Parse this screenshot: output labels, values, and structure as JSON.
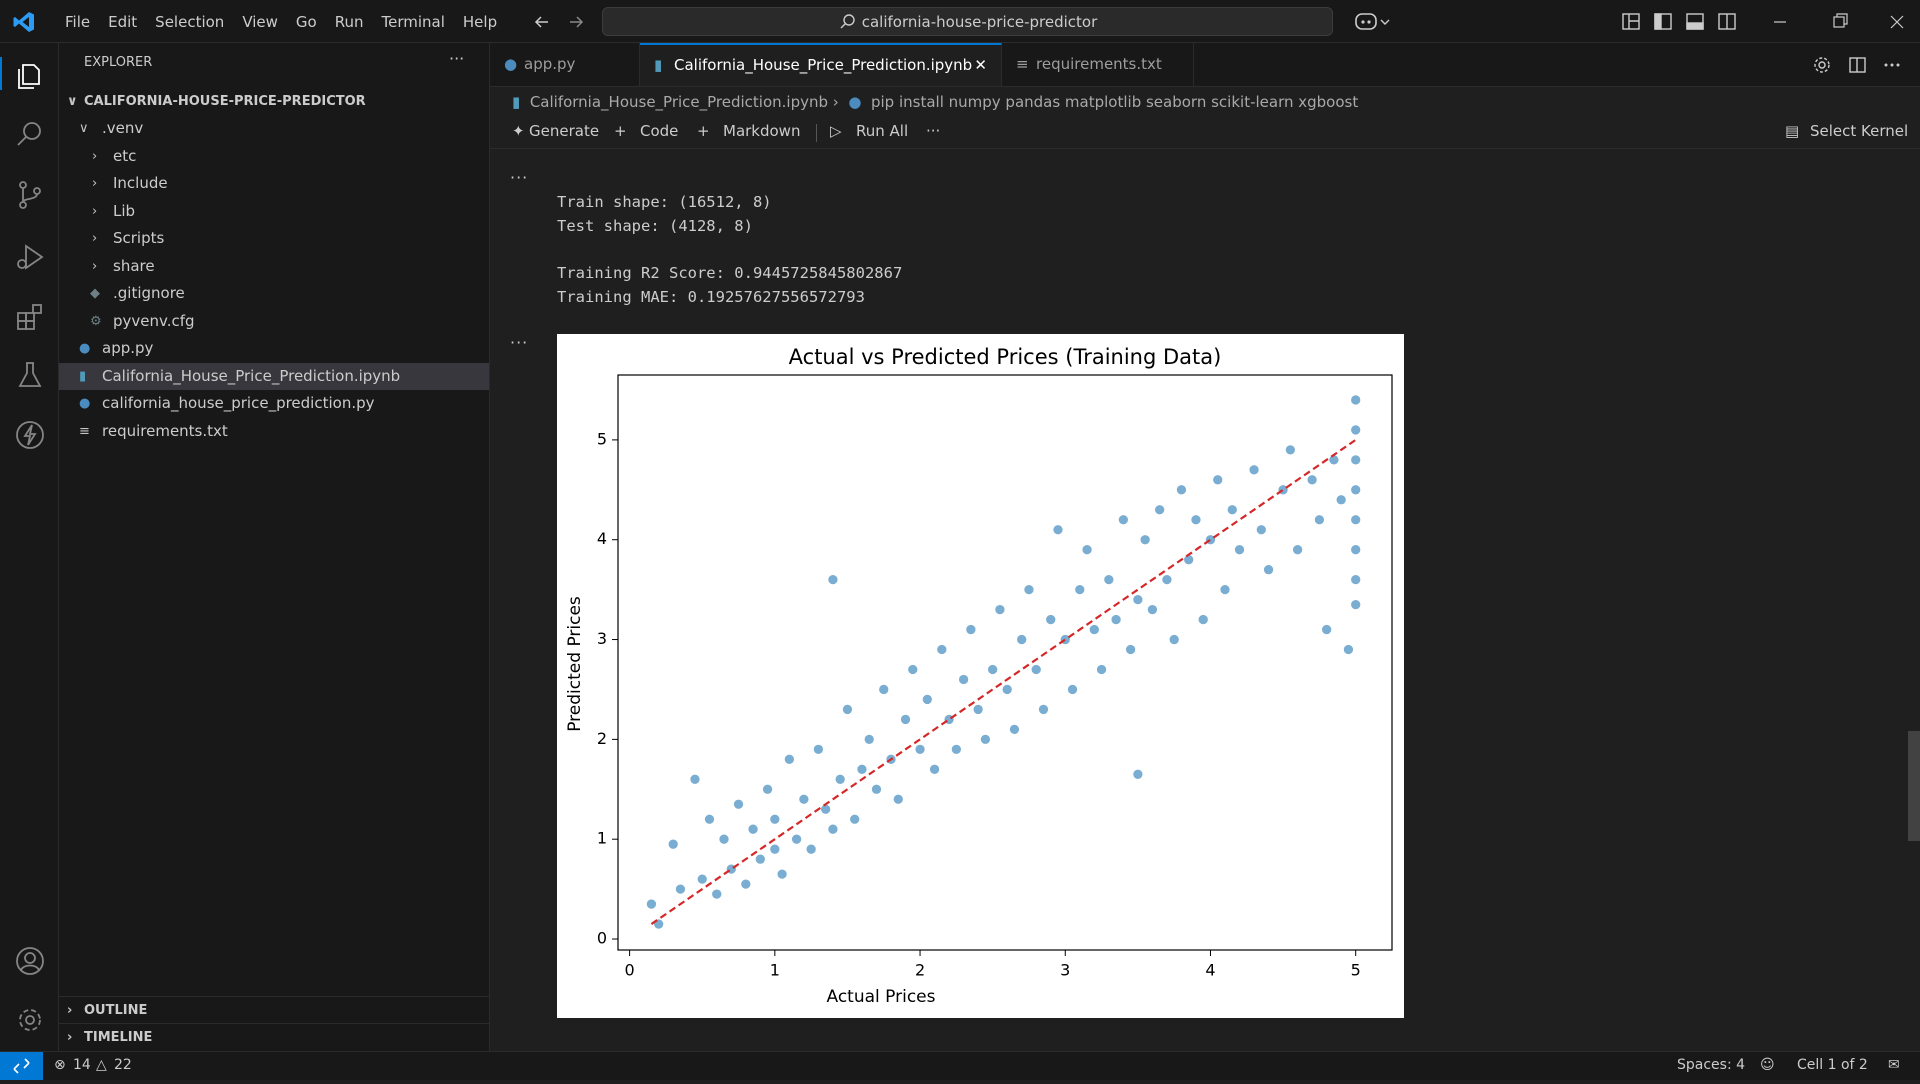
{
  "title_bar": {
    "menu": [
      "File",
      "Edit",
      "Selection",
      "View",
      "Go",
      "Run",
      "Terminal",
      "Help"
    ],
    "search": "california-house-price-predictor"
  },
  "sidebar": {
    "title": "EXPLORER",
    "root": "CALIFORNIA-HOUSE-PRICE-PREDICTOR",
    "tree": [
      ".venv",
      "etc",
      "Include",
      "Lib",
      "Scripts",
      "share",
      ".gitignore",
      "pyvenv.cfg",
      "app.py",
      "California_House_Price_Prediction.ipynb",
      "california_house_price_prediction.py",
      "requirements.txt"
    ],
    "sections": [
      "OUTLINE",
      "TIMELINE"
    ]
  },
  "tabs": [
    "app.py",
    "California_House_Price_Prediction.ipynb",
    "requirements.txt"
  ],
  "breadcrumb": [
    "California_House_Price_Prediction.ipynb",
    "pip install numpy pandas matplotlib seaborn scikit-learn xgboost"
  ],
  "toolbar": {
    "actions": [
      "Generate",
      "Code",
      "Markdown",
      "Run All"
    ],
    "kernel": "Select Kernel"
  },
  "output": {
    "shapes": [
      "Train shape: (16512, 8)",
      "Test shape: (4128, 8)"
    ],
    "scores": [
      "Training R2 Score: 0.9445725845802867",
      "Training MAE: 0.19257627556572793"
    ]
  },
  "chart_data": {
    "type": "scatter",
    "title": "Actual vs Predicted Prices (Training Data)",
    "x_label": "Actual Prices",
    "y_label": "Predicted Prices",
    "xlim": [
      -0.08,
      5.25
    ],
    "ylim": [
      -0.11,
      5.65
    ],
    "xticks": [
      0,
      1,
      2,
      3,
      4,
      5
    ],
    "yticks": [
      0,
      1,
      2,
      3,
      4,
      5
    ],
    "grid": false,
    "series": [
      {
        "kind": "points",
        "color": "#1f77b4",
        "x": [
          0.15,
          0.2,
          0.3,
          0.35,
          0.45,
          0.5,
          0.55,
          0.6,
          0.65,
          0.7,
          0.75,
          0.8,
          0.85,
          0.9,
          0.95,
          1.0,
          1.0,
          1.05,
          1.1,
          1.15,
          1.2,
          1.25,
          1.3,
          1.35,
          1.4,
          1.4,
          1.45,
          1.5,
          1.55,
          1.6,
          1.65,
          1.7,
          1.75,
          1.8,
          1.85,
          1.9,
          1.95,
          2.0,
          2.05,
          2.1,
          2.15,
          2.2,
          2.25,
          2.3,
          2.35,
          2.4,
          2.45,
          2.5,
          2.55,
          2.6,
          2.65,
          2.7,
          2.75,
          2.8,
          2.85,
          2.9,
          2.95,
          3.0,
          3.05,
          3.1,
          3.15,
          3.2,
          3.25,
          3.3,
          3.35,
          3.4,
          3.45,
          3.5,
          3.5,
          3.55,
          3.6,
          3.65,
          3.7,
          3.75,
          3.8,
          3.85,
          3.9,
          3.95,
          4.0,
          4.05,
          4.1,
          4.15,
          4.2,
          4.3,
          4.35,
          4.4,
          4.5,
          4.55,
          4.6,
          4.7,
          4.75,
          4.8,
          4.85,
          4.9,
          4.95,
          5.0,
          5.0,
          5.0,
          5.0,
          5.0,
          5.0,
          5.0,
          5.0
        ],
        "values": [
          0.35,
          0.15,
          0.95,
          0.5,
          1.6,
          0.6,
          1.2,
          0.45,
          1.0,
          0.7,
          1.35,
          0.55,
          1.1,
          0.8,
          1.5,
          0.9,
          1.2,
          0.65,
          1.8,
          1.0,
          1.4,
          0.9,
          1.9,
          1.3,
          3.6,
          1.1,
          1.6,
          2.3,
          1.2,
          1.7,
          2.0,
          1.5,
          2.5,
          1.8,
          1.4,
          2.2,
          2.7,
          1.9,
          2.4,
          1.7,
          2.9,
          2.2,
          1.9,
          2.6,
          3.1,
          2.3,
          2.0,
          2.7,
          3.3,
          2.5,
          2.1,
          3.0,
          3.5,
          2.7,
          2.3,
          3.2,
          4.1,
          3.0,
          2.5,
          3.5,
          3.9,
          3.1,
          2.7,
          3.6,
          3.2,
          4.2,
          2.9,
          1.65,
          3.4,
          4.0,
          3.3,
          4.3,
          3.6,
          3.0,
          4.5,
          3.8,
          4.2,
          3.2,
          4.0,
          4.6,
          3.5,
          4.3,
          3.9,
          4.7,
          4.1,
          3.7,
          4.5,
          4.9,
          3.9,
          4.6,
          4.2,
          3.1,
          4.8,
          4.4,
          2.9,
          5.4,
          5.1,
          4.8,
          4.5,
          4.2,
          3.9,
          3.6,
          3.35
        ]
      },
      {
        "kind": "line",
        "color": "#d62728",
        "style": "dashed",
        "x": [
          0.15,
          5.0
        ],
        "values": [
          0.15,
          5.0
        ]
      }
    ]
  },
  "status_bar": {
    "errors": 14,
    "warnings": 22,
    "right": [
      "Spaces: 4",
      "Cell 1 of 2"
    ]
  }
}
